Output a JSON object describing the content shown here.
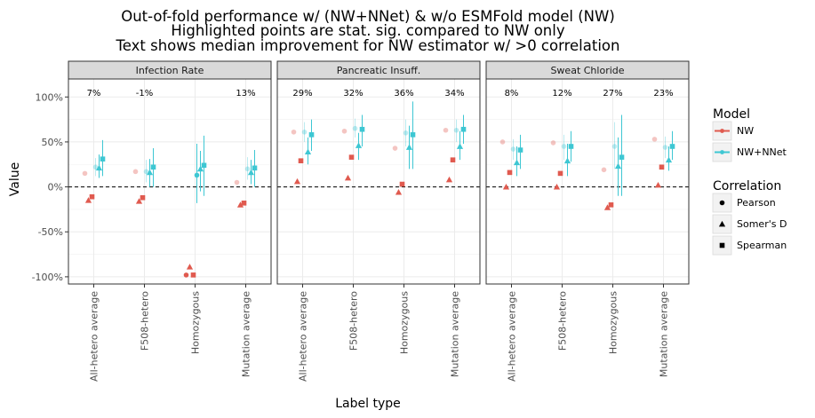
{
  "chart_data": {
    "type": "scatter",
    "title": [
      "Out-of-fold performance w/ (NW+NNet) & w/o ESMFold model (NW)",
      "Highlighted points are stat. sig. compared to NW only",
      "Text shows median improvement for NW estimator w/ >0 correlation"
    ],
    "xlabel": "Label type",
    "ylabel": "Value",
    "ylim": [
      -1.08,
      1.2
    ],
    "yticks": [
      -1.0,
      -0.5,
      0.0,
      0.5,
      1.0
    ],
    "ytick_labels": [
      "-100%",
      "-50%",
      "0%",
      "50%",
      "100%"
    ],
    "hline": 0,
    "grid": true,
    "facets": [
      "Infection Rate",
      "Pancreatic Insuff.",
      "Sweat Chloride"
    ],
    "categories": [
      "All-hetero average",
      "F508-hetero",
      "Homozygous",
      "Mutation average"
    ],
    "legend": {
      "model_title": "Model",
      "models": [
        {
          "name": "NW",
          "color": "#e05a4f"
        },
        {
          "name": "NW+NNet",
          "color": "#3ec7d3"
        }
      ],
      "correlation_title": "Correlation",
      "correlations": [
        {
          "name": "Pearson",
          "shape": "circle"
        },
        {
          "name": "Somer's D",
          "shape": "triangle"
        },
        {
          "name": "Spearman",
          "shape": "square"
        }
      ]
    },
    "annotations": [
      [
        "7%",
        "-1%",
        "",
        "13%"
      ],
      [
        "29%",
        "32%",
        "36%",
        "34%"
      ],
      [
        "8%",
        "12%",
        "27%",
        "23%"
      ]
    ],
    "points": [
      [
        {
          "nw": {
            "pearson": [
              0.15,
              false
            ],
            "somers": [
              -0.15,
              true
            ],
            "spearman": [
              -0.11,
              true
            ]
          },
          "nn": {
            "pearson": [
              0.22,
              false,
              0.12,
              0.32
            ],
            "somers": [
              0.21,
              true,
              0.1,
              0.36
            ],
            "spearman": [
              0.31,
              true,
              0.12,
              0.52
            ]
          }
        },
        {
          "nw": {
            "pearson": [
              0.17,
              false
            ],
            "somers": [
              -0.16,
              true
            ],
            "spearman": [
              -0.12,
              true
            ]
          },
          "nn": {
            "pearson": [
              0.17,
              false,
              0.05,
              0.3
            ],
            "somers": [
              0.16,
              true,
              0.0,
              0.31
            ],
            "spearman": [
              0.22,
              true,
              0.0,
              0.43
            ]
          }
        },
        {
          "nw": {
            "pearson": [
              -0.98,
              true
            ],
            "somers": [
              -0.89,
              true
            ],
            "spearman": [
              -0.98,
              true
            ]
          },
          "nn": {
            "pearson": [
              0.13,
              true,
              -0.18,
              0.48
            ],
            "somers": [
              0.2,
              true,
              -0.05,
              0.4
            ],
            "spearman": [
              0.24,
              true,
              -0.1,
              0.57
            ]
          }
        },
        {
          "nw": {
            "pearson": [
              0.05,
              false
            ],
            "somers": [
              -0.2,
              true
            ],
            "spearman": [
              -0.18,
              true
            ]
          },
          "nn": {
            "pearson": [
              0.2,
              false,
              0.08,
              0.33
            ],
            "somers": [
              0.16,
              true,
              0.03,
              0.3
            ],
            "spearman": [
              0.21,
              true,
              0.0,
              0.41
            ]
          }
        }
      ],
      [
        {
          "nw": {
            "pearson": [
              0.61,
              false
            ],
            "somers": [
              0.06,
              true
            ],
            "spearman": [
              0.29,
              true
            ]
          },
          "nn": {
            "pearson": [
              0.61,
              false,
              0.5,
              0.72
            ],
            "somers": [
              0.39,
              true,
              0.25,
              0.55
            ],
            "spearman": [
              0.58,
              true,
              0.4,
              0.75
            ]
          }
        },
        {
          "nw": {
            "pearson": [
              0.62,
              false
            ],
            "somers": [
              0.1,
              true
            ],
            "spearman": [
              0.33,
              true
            ]
          },
          "nn": {
            "pearson": [
              0.65,
              false,
              0.55,
              0.76
            ],
            "somers": [
              0.46,
              true,
              0.3,
              0.6
            ],
            "spearman": [
              0.64,
              true,
              0.45,
              0.8
            ]
          }
        },
        {
          "nw": {
            "pearson": [
              0.43,
              false
            ],
            "somers": [
              -0.06,
              true
            ],
            "spearman": [
              0.03,
              true
            ]
          },
          "nn": {
            "pearson": [
              0.6,
              false,
              0.45,
              0.75
            ],
            "somers": [
              0.44,
              true,
              0.2,
              0.68
            ],
            "spearman": [
              0.58,
              true,
              0.2,
              0.95
            ]
          }
        },
        {
          "nw": {
            "pearson": [
              0.63,
              false
            ],
            "somers": [
              0.08,
              true
            ],
            "spearman": [
              0.3,
              true
            ]
          },
          "nn": {
            "pearson": [
              0.63,
              false,
              0.5,
              0.75
            ],
            "somers": [
              0.45,
              true,
              0.3,
              0.62
            ],
            "spearman": [
              0.64,
              true,
              0.48,
              0.8
            ]
          }
        }
      ],
      [
        {
          "nw": {
            "pearson": [
              0.5,
              false
            ],
            "somers": [
              0.0,
              true
            ],
            "spearman": [
              0.16,
              true
            ]
          },
          "nn": {
            "pearson": [
              0.42,
              false,
              0.3,
              0.53
            ],
            "somers": [
              0.27,
              true,
              0.12,
              0.45
            ],
            "spearman": [
              0.41,
              true,
              0.2,
              0.58
            ]
          }
        },
        {
          "nw": {
            "pearson": [
              0.49,
              false
            ],
            "somers": [
              0.0,
              true
            ],
            "spearman": [
              0.15,
              true
            ]
          },
          "nn": {
            "pearson": [
              0.45,
              false,
              0.3,
              0.58
            ],
            "somers": [
              0.29,
              true,
              0.12,
              0.48
            ],
            "spearman": [
              0.45,
              true,
              0.28,
              0.62
            ]
          }
        },
        {
          "nw": {
            "pearson": [
              0.19,
              false
            ],
            "somers": [
              -0.23,
              true
            ],
            "spearman": [
              -0.2,
              true
            ]
          },
          "nn": {
            "pearson": [
              0.45,
              false,
              0.2,
              0.72
            ],
            "somers": [
              0.23,
              true,
              -0.1,
              0.55
            ],
            "spearman": [
              0.33,
              true,
              -0.1,
              0.8
            ]
          }
        },
        {
          "nw": {
            "pearson": [
              0.53,
              false
            ],
            "somers": [
              0.02,
              true
            ],
            "spearman": [
              0.22,
              true
            ]
          },
          "nn": {
            "pearson": [
              0.44,
              false,
              0.32,
              0.56
            ],
            "somers": [
              0.3,
              true,
              0.18,
              0.45
            ],
            "spearman": [
              0.45,
              true,
              0.3,
              0.62
            ]
          }
        }
      ]
    ]
  }
}
